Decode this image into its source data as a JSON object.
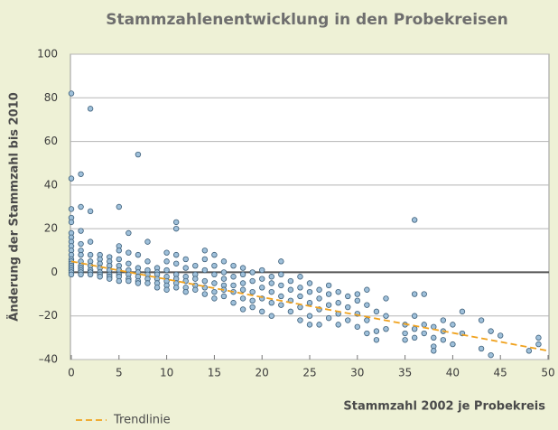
{
  "chart_data": {
    "type": "scatter",
    "title": "Stammzahlenentwicklung in den Probekreisen",
    "x_label": "Stammzahl 2002 je Probekreis",
    "y_label": "Änderung der Stammzahl bis 2010",
    "xlim": [
      0,
      50
    ],
    "ylim": [
      -40,
      100
    ],
    "xticks": [
      0,
      5,
      10,
      15,
      20,
      25,
      30,
      35,
      40,
      45,
      50
    ],
    "yticks": [
      {
        "value": -40,
        "label": "–40"
      },
      {
        "value": -20,
        "label": "–20"
      },
      0,
      20,
      40,
      60,
      80,
      100
    ],
    "grid": true,
    "legend": "bottom-left",
    "series": [
      {
        "type": "scatter",
        "color": "#9fc0da",
        "x": [
          0,
          0,
          0,
          0,
          0,
          0,
          0,
          0,
          0,
          0,
          0,
          0,
          0,
          0,
          0,
          0,
          0,
          0,
          0,
          1,
          1,
          1,
          1,
          1,
          1,
          1,
          1,
          1,
          1,
          1,
          1,
          2,
          2,
          2,
          2,
          2,
          2,
          2,
          2,
          2,
          3,
          3,
          3,
          3,
          3,
          3,
          3,
          4,
          4,
          4,
          4,
          4,
          4,
          4,
          5,
          5,
          5,
          5,
          5,
          5,
          5,
          5,
          5,
          6,
          6,
          6,
          6,
          6,
          6,
          6,
          7,
          7,
          7,
          7,
          7,
          7,
          7,
          8,
          8,
          8,
          8,
          8,
          8,
          9,
          9,
          9,
          9,
          9,
          9,
          10,
          10,
          10,
          10,
          10,
          10,
          10,
          11,
          11,
          11,
          11,
          11,
          11,
          11,
          11,
          12,
          12,
          12,
          12,
          12,
          12,
          13,
          13,
          13,
          13,
          13,
          14,
          14,
          14,
          14,
          14,
          14,
          15,
          15,
          15,
          15,
          15,
          15,
          16,
          16,
          16,
          16,
          16,
          16,
          17,
          17,
          17,
          17,
          17,
          18,
          18,
          18,
          18,
          18,
          18,
          19,
          19,
          19,
          19,
          19,
          20,
          20,
          20,
          20,
          20,
          21,
          21,
          21,
          21,
          21,
          22,
          22,
          22,
          22,
          22,
          23,
          23,
          23,
          23,
          24,
          24,
          24,
          24,
          24,
          25,
          25,
          25,
          25,
          25,
          26,
          26,
          26,
          26,
          27,
          27,
          27,
          27,
          28,
          28,
          28,
          28,
          29,
          29,
          29,
          30,
          30,
          30,
          30,
          31,
          31,
          31,
          31,
          32,
          32,
          32,
          33,
          33,
          33,
          35,
          35,
          35,
          36,
          36,
          36,
          36,
          36,
          37,
          37,
          37,
          38,
          38,
          38,
          38,
          39,
          39,
          39,
          40,
          40,
          41,
          41,
          43,
          43,
          44,
          44,
          45,
          48,
          49,
          49
        ],
        "values": [
          82,
          43,
          29,
          25,
          23,
          18,
          16,
          14,
          12,
          10,
          8,
          6,
          5,
          4,
          3,
          2,
          1,
          0,
          -1,
          45,
          30,
          19,
          13,
          10,
          8,
          5,
          3,
          2,
          1,
          0,
          -1,
          75,
          28,
          14,
          8,
          5,
          3,
          1,
          0,
          -1,
          8,
          6,
          4,
          2,
          0,
          -1,
          -2,
          7,
          5,
          3,
          1,
          -1,
          -2,
          -3,
          30,
          12,
          10,
          6,
          3,
          1,
          -1,
          -2,
          -4,
          18,
          9,
          4,
          1,
          -1,
          -3,
          -4,
          54,
          8,
          2,
          0,
          -2,
          -4,
          -5,
          14,
          5,
          1,
          -1,
          -3,
          -5,
          2,
          0,
          -1,
          -3,
          -5,
          -7,
          9,
          5,
          1,
          -2,
          -4,
          -6,
          -8,
          23,
          20,
          8,
          4,
          -1,
          -3,
          -5,
          -7,
          6,
          2,
          -2,
          -4,
          -7,
          -9,
          3,
          -1,
          -3,
          -6,
          -8,
          10,
          6,
          1,
          -4,
          -7,
          -10,
          8,
          3,
          -1,
          -5,
          -9,
          -12,
          5,
          0,
          -3,
          -6,
          -8,
          -11,
          3,
          -2,
          -6,
          -9,
          -14,
          2,
          -1,
          -5,
          -8,
          -12,
          -17,
          0,
          -4,
          -9,
          -13,
          -16,
          1,
          -3,
          -7,
          -12,
          -18,
          -2,
          -5,
          -9,
          -14,
          -20,
          5,
          -1,
          -6,
          -11,
          -15,
          -4,
          -8,
          -13,
          -18,
          -2,
          -7,
          -11,
          -16,
          -22,
          -5,
          -9,
          -14,
          -20,
          -24,
          -8,
          -12,
          -17,
          -24,
          -6,
          -10,
          -15,
          -21,
          -9,
          -14,
          -19,
          -24,
          -11,
          -16,
          -22,
          -10,
          -13,
          -19,
          -25,
          -8,
          -15,
          -22,
          -28,
          -18,
          -27,
          -31,
          -12,
          -20,
          -26,
          -24,
          -28,
          -31,
          24,
          -10,
          -20,
          -26,
          -30,
          -10,
          -24,
          -28,
          -25,
          -30,
          -34,
          -36,
          -22,
          -27,
          -31,
          -24,
          -33,
          -18,
          -28,
          -22,
          -35,
          -27,
          -38,
          -29,
          -36,
          -30,
          -33
        ]
      },
      {
        "type": "line",
        "name": "Trendlinie",
        "color": "#f0a21e",
        "x": [
          0,
          50
        ],
        "values": [
          5,
          -36
        ]
      }
    ]
  }
}
